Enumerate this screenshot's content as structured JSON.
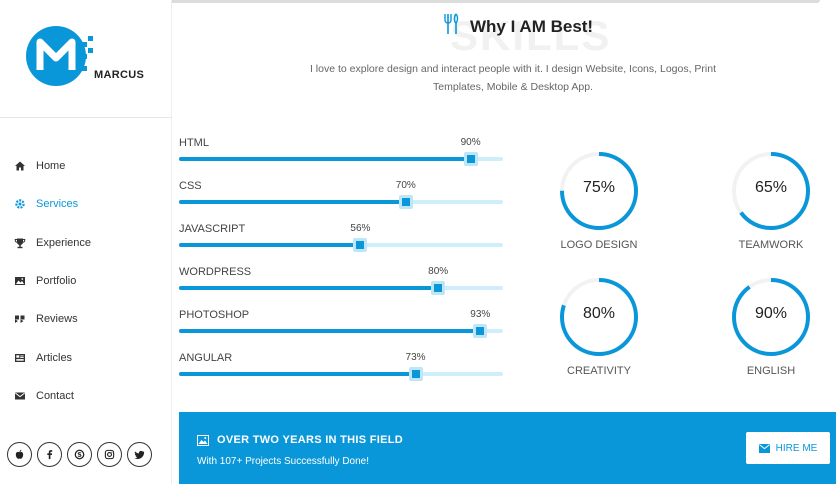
{
  "brand": {
    "name": "MARCUS"
  },
  "colors": {
    "accent": "#0a97d9",
    "track": "#cfeefb"
  },
  "nav": {
    "items": [
      {
        "label": "Home",
        "icon": "home-icon",
        "active": false
      },
      {
        "label": "Services",
        "icon": "gear-icon",
        "active": true
      },
      {
        "label": "Experience",
        "icon": "trophy-icon",
        "active": false
      },
      {
        "label": "Portfolio",
        "icon": "image-icon",
        "active": false
      },
      {
        "label": "Reviews",
        "icon": "quote-icon",
        "active": false
      },
      {
        "label": "Articles",
        "icon": "newspaper-icon",
        "active": false
      },
      {
        "label": "Contact",
        "icon": "envelope-icon",
        "active": false
      }
    ]
  },
  "social": [
    "apple-icon",
    "facebook-icon",
    "skype-icon",
    "instagram-icon",
    "twitter-icon"
  ],
  "header": {
    "watermark": "SKILLS",
    "title": "Why I AM Best!",
    "description": "I love to explore design and interact people with it. I design Website, Icons, Logos, Print Templates, Mobile & Desktop App."
  },
  "skills": [
    {
      "label": "HTML",
      "value": 90,
      "display": "90%"
    },
    {
      "label": "CSS",
      "value": 70,
      "display": "70%"
    },
    {
      "label": "JAVASCRIPT",
      "value": 56,
      "display": "56%"
    },
    {
      "label": "WORDPRESS",
      "value": 80,
      "display": "80%"
    },
    {
      "label": "PHOTOSHOP",
      "value": 93,
      "display": "93%"
    },
    {
      "label": "ANGULAR",
      "value": 73,
      "display": "73%"
    }
  ],
  "circles": [
    {
      "label": "LOGO DESIGN",
      "value": 75,
      "display": "75%"
    },
    {
      "label": "TEAMWORK",
      "value": 65,
      "display": "65%"
    },
    {
      "label": "CREATIVITY",
      "value": 80,
      "display": "80%"
    },
    {
      "label": "ENGLISH",
      "value": 90,
      "display": "90%"
    }
  ],
  "banner": {
    "title": "OVER TWO YEARS IN THIS FIELD",
    "subtitle": "With 107+ Projects Successfully Done!",
    "button": "HIRE ME"
  }
}
